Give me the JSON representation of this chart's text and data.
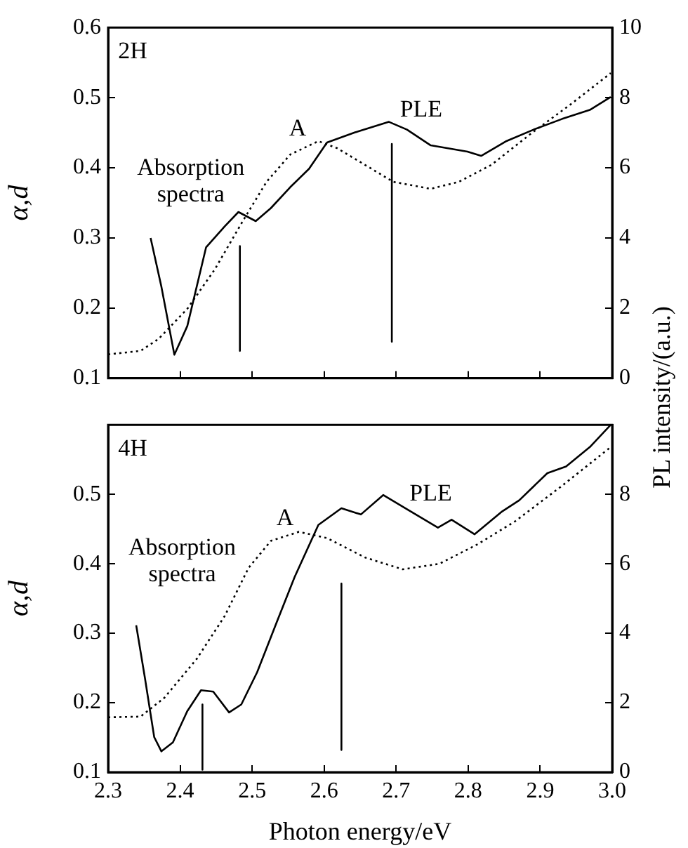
{
  "chart_data": [
    {
      "type": "line",
      "ylabel": "α,d",
      "y2label": "PL intensity/(a.u.)",
      "marker": "none",
      "xlim": [
        2.3,
        3.0
      ],
      "xticks": [
        {
          "value": 2.3,
          "label": null
        },
        {
          "value": 2.4,
          "label": null
        },
        {
          "value": 2.5,
          "label": null
        },
        {
          "value": 2.6,
          "label": null
        },
        {
          "value": 2.7,
          "label": null
        },
        {
          "value": 2.8,
          "label": null
        },
        {
          "value": 2.9,
          "label": null
        },
        {
          "value": 3.0,
          "label": null
        }
      ],
      "ylim": [
        0.1,
        0.6
      ],
      "yticks": [
        0.1,
        0.2,
        0.3,
        0.4,
        0.5,
        0.6
      ],
      "y2lim": [
        0,
        10
      ],
      "y2ticks": [
        0,
        2,
        4,
        6,
        8,
        10
      ],
      "tick_labels": "y",
      "annotations": [
        "2H",
        "Absorption spectra",
        "A",
        "PLE"
      ],
      "series": [
        {
          "color": "#000000",
          "line_style": "dotted",
          "axis": "y",
          "x": [
            2.3,
            2.345,
            2.37,
            2.41,
            2.448,
            2.487,
            2.52,
            2.553,
            2.592,
            2.618,
            2.657,
            2.696,
            2.748,
            2.787,
            2.832,
            2.885,
            2.943,
            2.998
          ],
          "values": [
            0.134,
            0.139,
            0.156,
            0.199,
            0.255,
            0.324,
            0.38,
            0.419,
            0.438,
            0.428,
            0.404,
            0.38,
            0.37,
            0.38,
            0.404,
            0.447,
            0.491,
            0.535
          ]
        },
        {
          "color": "#000000",
          "line_style": "solid",
          "axis": "y2",
          "x": [
            2.359,
            2.374,
            2.392,
            2.41,
            2.436,
            2.462,
            2.481,
            2.505,
            2.526,
            2.553,
            2.579,
            2.604,
            2.643,
            2.69,
            2.715,
            2.748,
            2.799,
            2.818,
            2.852,
            2.891,
            2.93,
            2.969,
            2.998
          ],
          "values": [
            4.0,
            2.61,
            0.67,
            1.49,
            3.73,
            4.33,
            4.74,
            4.48,
            4.85,
            5.45,
            5.97,
            6.72,
            7.01,
            7.31,
            7.09,
            6.64,
            6.46,
            6.34,
            6.75,
            7.09,
            7.39,
            7.65,
            8.02
          ]
        },
        {
          "color": "#000000",
          "line_style": "solid",
          "axis": "y2",
          "x": [
            2.483,
            2.483
          ],
          "values": [
            3.77,
            0.78
          ]
        },
        {
          "color": "#000000",
          "line_style": "solid",
          "axis": "y2",
          "x": [
            2.694,
            2.694
          ],
          "values": [
            6.68,
            1.04
          ]
        }
      ]
    },
    {
      "type": "line",
      "ylabel": "α,d",
      "xlabel": "Photon energy/eV",
      "marker": "none",
      "xlim": [
        2.3,
        3.0
      ],
      "xticks": [
        2.3,
        2.4,
        2.5,
        2.6,
        2.7,
        2.8,
        2.9,
        {
          "value": 3.0,
          "label": "3.0"
        }
      ],
      "ylim": [
        0.1,
        0.6
      ],
      "yticks": [
        0.1,
        0.2,
        0.3,
        0.4,
        0.5
      ],
      "y2lim": [
        0,
        10
      ],
      "y2ticks": [
        0,
        2,
        4,
        6,
        8
      ],
      "annotations": [
        "4H",
        "Absorption spectra",
        "A",
        "PLE"
      ],
      "series": [
        {
          "color": "#000000",
          "line_style": "dotted",
          "axis": "y",
          "x": [
            2.3,
            2.345,
            2.378,
            2.423,
            2.462,
            2.495,
            2.526,
            2.565,
            2.604,
            2.657,
            2.709,
            2.76,
            2.813,
            2.865,
            2.93,
            2.998
          ],
          "values": [
            0.179,
            0.18,
            0.207,
            0.263,
            0.325,
            0.394,
            0.433,
            0.446,
            0.437,
            0.409,
            0.392,
            0.4,
            0.428,
            0.461,
            0.512,
            0.568
          ]
        },
        {
          "color": "#000000",
          "line_style": "solid",
          "axis": "y2",
          "x": [
            2.339,
            2.351,
            2.364,
            2.374,
            2.39,
            2.41,
            2.429,
            2.446,
            2.468,
            2.485,
            2.507,
            2.534,
            2.559,
            2.592,
            2.624,
            2.651,
            2.682,
            2.715,
            2.758,
            2.777,
            2.809,
            2.846,
            2.871,
            2.91,
            2.936,
            2.969,
            2.998
          ],
          "values": [
            4.23,
            2.73,
            1.01,
            0.6,
            0.86,
            1.76,
            2.36,
            2.32,
            1.72,
            1.95,
            2.88,
            4.31,
            5.62,
            7.12,
            7.6,
            7.42,
            7.98,
            7.57,
            7.04,
            7.27,
            6.85,
            7.49,
            7.83,
            8.61,
            8.8,
            9.36,
            10.0
          ]
        },
        {
          "color": "#000000",
          "line_style": "solid",
          "axis": "y2",
          "x": [
            2.431,
            2.431
          ],
          "values": [
            1.95,
            0.07
          ]
        },
        {
          "color": "#000000",
          "line_style": "solid",
          "axis": "y2",
          "x": [
            2.624,
            2.624
          ],
          "values": [
            5.43,
            0.64
          ]
        }
      ]
    }
  ]
}
